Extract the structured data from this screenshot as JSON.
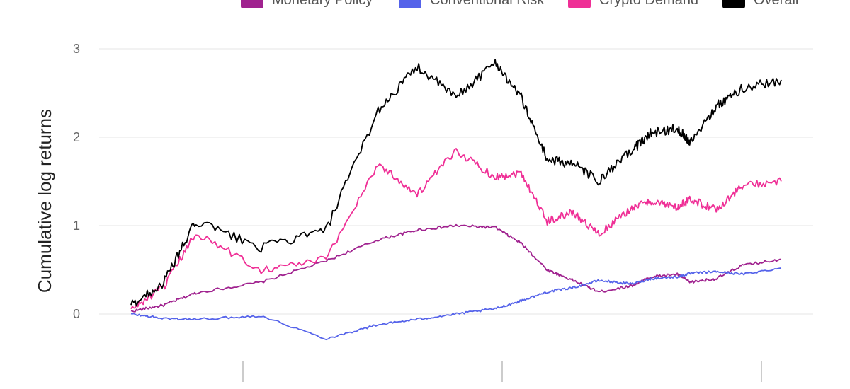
{
  "colors": {
    "monetary_policy": "#a0228f",
    "conventional_risk": "#5563ea",
    "crypto_demand": "#ef2f96",
    "overall": "#000000",
    "grid": "#e6e6e6",
    "tick_line": "#bbbbbb"
  },
  "chart_data": {
    "type": "line",
    "title": "",
    "xlabel": "",
    "ylabel": "Cumulative log returns",
    "ylim": [
      -0.6,
      3.5
    ],
    "xlim": [
      0,
      100
    ],
    "yticks": [
      0,
      1,
      2,
      3
    ],
    "grid": true,
    "legend": "top",
    "x": [
      0,
      5,
      10,
      20,
      30,
      38,
      44,
      50,
      56,
      60,
      64,
      68,
      72,
      77,
      80,
      84,
      86,
      90,
      94,
      100
    ],
    "series": [
      {
        "name": "Monetary Policy",
        "color_key": "monetary_policy",
        "values": [
          0.03,
          0.1,
          0.24,
          0.36,
          0.6,
          0.84,
          0.95,
          1.0,
          0.98,
          0.8,
          0.5,
          0.38,
          0.25,
          0.32,
          0.42,
          0.45,
          0.36,
          0.4,
          0.55,
          0.62
        ]
      },
      {
        "name": "Conventional Risk",
        "color_key": "conventional_risk",
        "values": [
          0.0,
          -0.05,
          -0.06,
          -0.02,
          -0.28,
          -0.12,
          -0.06,
          0.0,
          0.06,
          0.15,
          0.25,
          0.3,
          0.38,
          0.34,
          0.4,
          0.42,
          0.46,
          0.48,
          0.45,
          0.52
        ]
      },
      {
        "name": "Crypto Demand",
        "color_key": "crypto_demand",
        "values": [
          0.05,
          0.3,
          0.92,
          0.5,
          0.62,
          1.7,
          1.35,
          1.85,
          1.55,
          1.6,
          1.05,
          1.15,
          0.9,
          1.2,
          1.28,
          1.2,
          1.3,
          1.18,
          1.45,
          1.5
        ]
      },
      {
        "name": "Overall",
        "color_key": "overall",
        "values": [
          0.1,
          0.35,
          1.05,
          0.75,
          0.95,
          2.3,
          2.8,
          2.45,
          2.85,
          2.45,
          1.75,
          1.7,
          1.5,
          1.85,
          2.05,
          2.1,
          1.95,
          2.35,
          2.55,
          2.65
        ]
      }
    ]
  }
}
